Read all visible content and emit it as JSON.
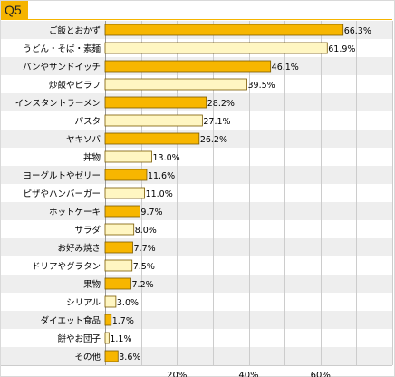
{
  "header": {
    "question_label": "Q5"
  },
  "chart_data": {
    "type": "bar",
    "orientation": "horizontal",
    "categories": [
      "ご飯とおかず",
      "うどん・そば・素麺",
      "パンやサンドイッチ",
      "炒飯やピラフ",
      "インスタントラーメン",
      "パスタ",
      "ヤキソバ",
      "丼物",
      "ヨーグルトやゼリー",
      "ピザやハンバーガー",
      "ホットケーキ",
      "サラダ",
      "お好み焼き",
      "ドリアやグラタン",
      "果物",
      "シリアル",
      "ダイエット食品",
      "餅やお団子",
      "その他"
    ],
    "values": [
      66.3,
      61.9,
      46.1,
      39.5,
      28.2,
      27.1,
      26.2,
      13.0,
      11.6,
      11.0,
      9.7,
      8.0,
      7.7,
      7.5,
      7.2,
      3.0,
      1.7,
      1.1,
      3.6
    ],
    "value_labels": [
      "66.3%",
      "61.9%",
      "46.1%",
      "39.5%",
      "28.2%",
      "27.1%",
      "26.2%",
      "13.0%",
      "11.6%",
      "11.0%",
      "9.7%",
      "8.0%",
      "7.7%",
      "7.5%",
      "7.2%",
      "3.0%",
      "1.7%",
      "1.1%",
      "3.6%"
    ],
    "highlighted": [
      true,
      false,
      true,
      false,
      true,
      false,
      true,
      false,
      true,
      false,
      true,
      false,
      true,
      false,
      true,
      false,
      true,
      false,
      true
    ],
    "xlim": [
      0,
      80
    ],
    "xticks": [
      20,
      40,
      60
    ],
    "xtick_labels": [
      "20%",
      "40%",
      "60%"
    ],
    "grid": true,
    "colors": {
      "highlight": "#f7b600",
      "normal": "#fff6c2",
      "bar_border": "#7a5a00",
      "row_alt": "#eeeeee",
      "grid": "#cccccc",
      "badge": "#f5b400"
    }
  }
}
